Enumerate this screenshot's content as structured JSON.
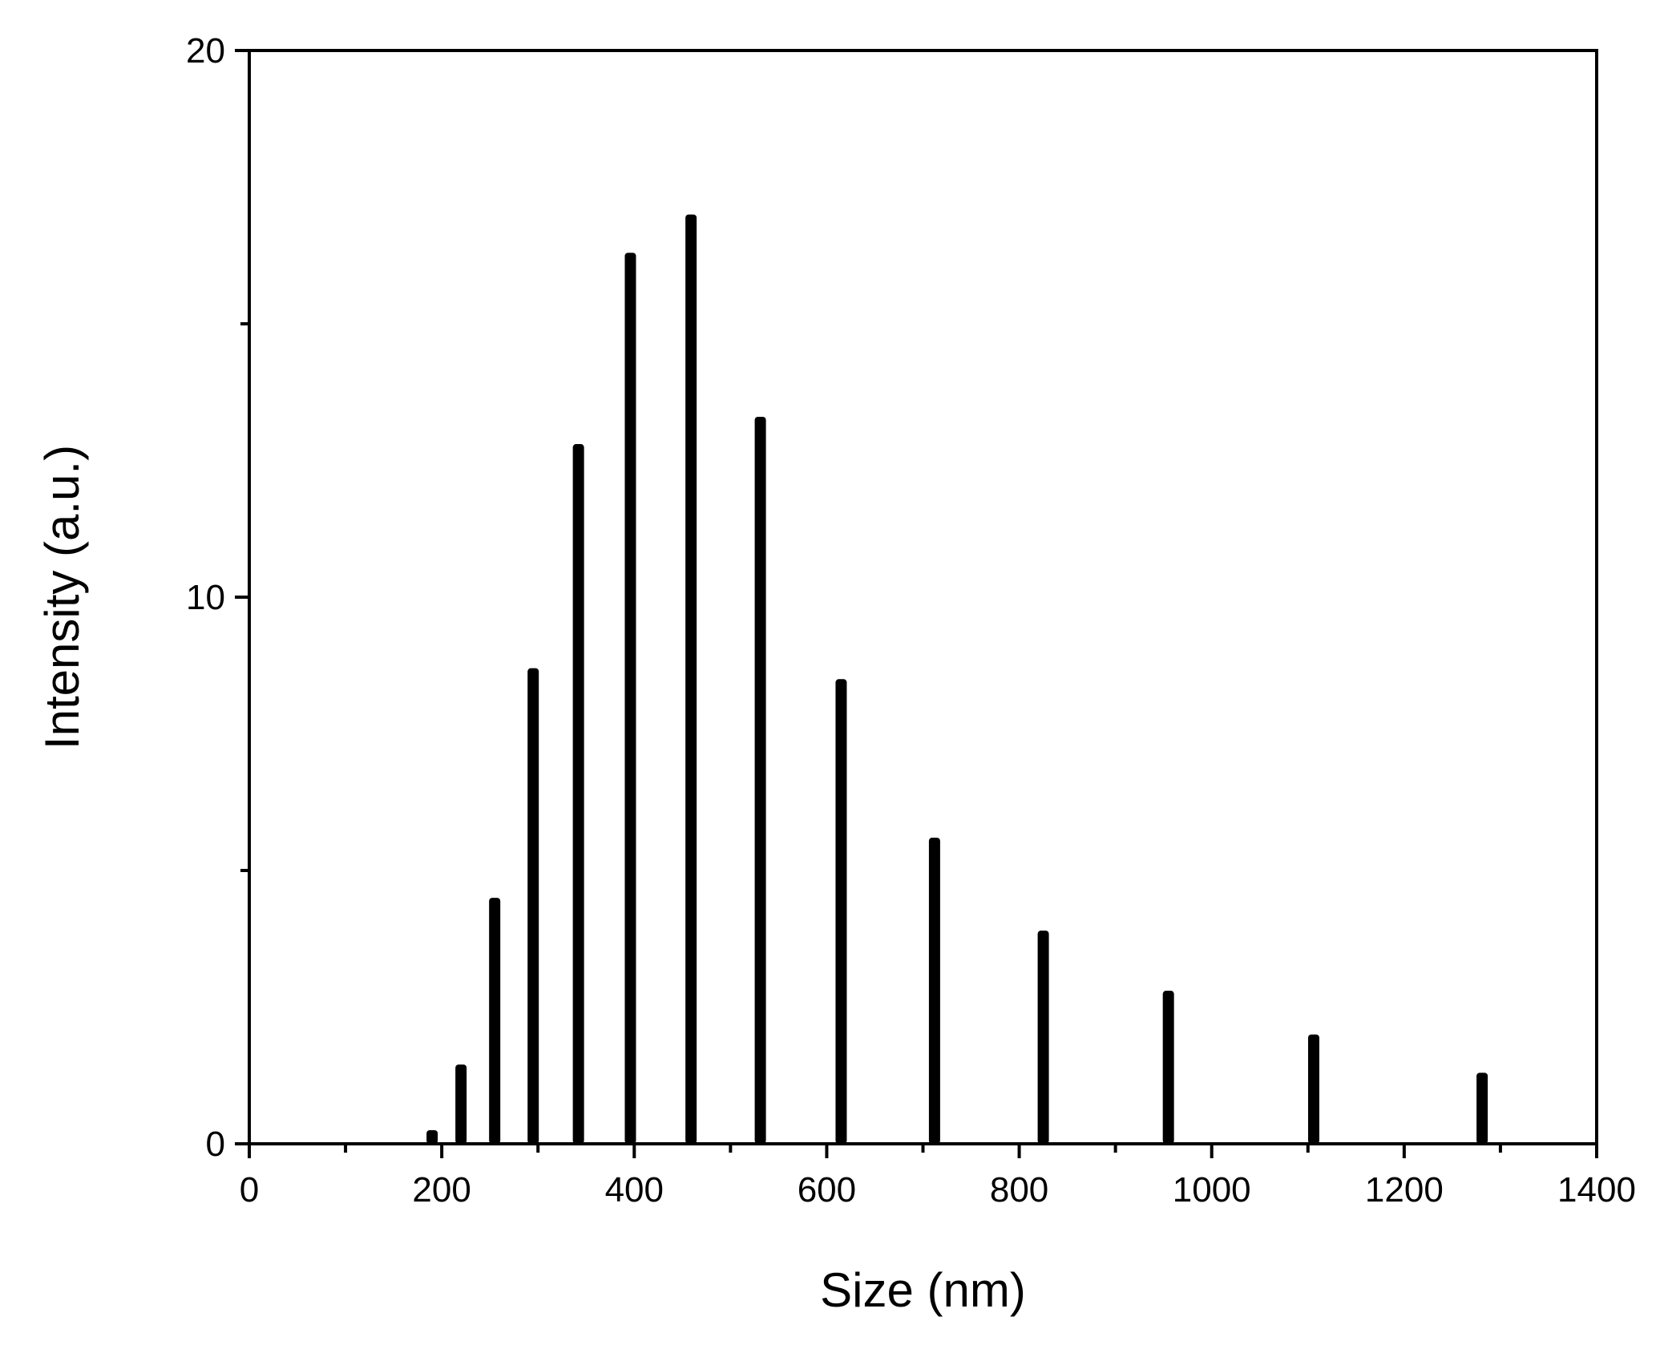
{
  "chart_data": {
    "type": "bar",
    "title": "",
    "xlabel": "Size (nm)",
    "ylabel": "Intensity (a.u.)",
    "xlim": [
      0,
      1400
    ],
    "ylim": [
      0,
      20
    ],
    "x_major_ticks": [
      0,
      200,
      400,
      600,
      800,
      1000,
      1200,
      1400
    ],
    "x_minor_ticks": [
      100,
      300,
      500,
      700,
      900,
      1100,
      1300
    ],
    "y_major_ticks": [
      0,
      10,
      20
    ],
    "y_minor_ticks": [
      5,
      15
    ],
    "x_tick_labels": [
      "0",
      "200",
      "400",
      "600",
      "800",
      "1000",
      "1200",
      "1400"
    ],
    "y_tick_labels": [
      "0",
      "10",
      "20"
    ],
    "grid": false,
    "legend": "none",
    "bar_color": "#000000",
    "series": [
      {
        "x": [
          190,
          220,
          255,
          295,
          342,
          396,
          459,
          531,
          615,
          712,
          825,
          955,
          1106,
          1281
        ],
        "values": [
          0.25,
          1.45,
          4.5,
          8.7,
          12.8,
          16.3,
          17.0,
          13.3,
          8.5,
          5.6,
          3.9,
          2.8,
          2.0,
          1.3
        ]
      }
    ]
  }
}
